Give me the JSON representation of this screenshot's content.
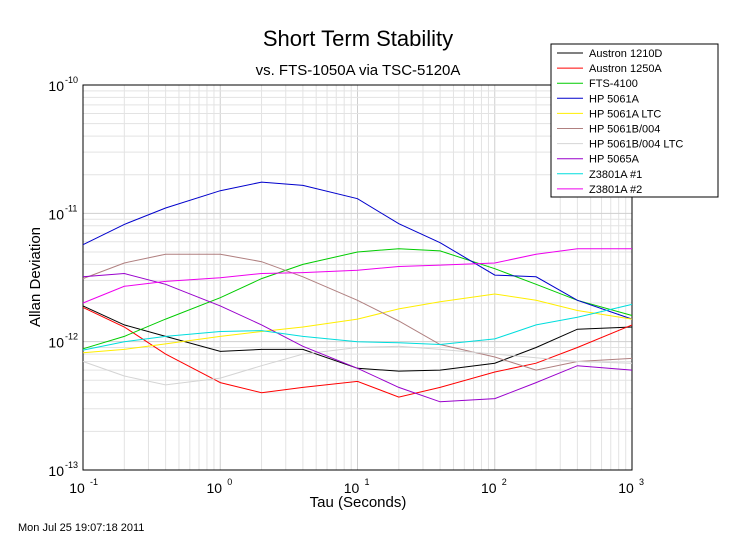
{
  "timestamp": "Mon Jul 25 19:07:18 2011",
  "chart_data": {
    "type": "line",
    "title": "Short Term Stability",
    "subtitle": "vs. FTS-1050A via TSC-5120A",
    "xlabel": "Tau (Seconds)",
    "ylabel": "Allan Deviation",
    "xscale": "log",
    "yscale": "log",
    "xlim": [
      0.1,
      1000
    ],
    "ylim": [
      1e-13,
      1e-10
    ],
    "grid": true,
    "legend_position": "top-right",
    "x_tick_labels": [
      {
        "value": 0.1,
        "base": "10",
        "exp": "-1"
      },
      {
        "value": 1,
        "base": "10",
        "exp": "0"
      },
      {
        "value": 10,
        "base": "10",
        "exp": "1"
      },
      {
        "value": 100,
        "base": "10",
        "exp": "2"
      },
      {
        "value": 1000,
        "base": "10",
        "exp": "3"
      }
    ],
    "y_tick_labels": [
      {
        "value": 1e-13,
        "base": "10",
        "exp": "-13"
      },
      {
        "value": 1e-12,
        "base": "10",
        "exp": "-12"
      },
      {
        "value": 1e-11,
        "base": "10",
        "exp": "-11"
      },
      {
        "value": 1e-10,
        "base": "10",
        "exp": "-10"
      }
    ],
    "x": [
      0.1,
      0.2,
      0.4,
      1,
      2,
      4,
      10,
      20,
      40,
      100,
      200,
      400,
      1000
    ],
    "series": [
      {
        "name": "Austron 1210D",
        "color": "#000000",
        "values": [
          1.9e-12,
          1.35e-12,
          1.1e-12,
          8.4e-13,
          8.7e-13,
          8.7e-13,
          6.2e-13,
          5.9e-13,
          6e-13,
          6.8e-13,
          9e-13,
          1.25e-12,
          1.3e-12
        ]
      },
      {
        "name": "Austron 1250A",
        "color": "#ff0000",
        "values": [
          1.85e-12,
          1.3e-12,
          8e-13,
          4.8e-13,
          4e-13,
          4.4e-13,
          4.9e-13,
          3.7e-13,
          4.4e-13,
          5.8e-13,
          6.8e-13,
          9e-13,
          1.35e-12
        ]
      },
      {
        "name": "FTS-4100",
        "color": "#00cc00",
        "values": [
          8.8e-13,
          1.1e-12,
          1.5e-12,
          2.2e-12,
          3.1e-12,
          4e-12,
          5e-12,
          5.3e-12,
          5.1e-12,
          3.7e-12,
          2.8e-12,
          2.1e-12,
          1.6e-12
        ]
      },
      {
        "name": "HP 5061A",
        "color": "#0000cc",
        "values": [
          5.7e-12,
          8.2e-12,
          1.1e-11,
          1.5e-11,
          1.75e-11,
          1.65e-11,
          1.3e-11,
          8.3e-12,
          5.9e-12,
          3.3e-12,
          3.2e-12,
          2.1e-12,
          1.5e-12
        ]
      },
      {
        "name": "HP 5061A LTC",
        "color": "#ffee00",
        "values": [
          8.2e-13,
          8.7e-13,
          9.6e-13,
          1.1e-12,
          1.2e-12,
          1.3e-12,
          1.5e-12,
          1.8e-12,
          2.05e-12,
          2.35e-12,
          2.1e-12,
          1.75e-12,
          1.5e-12
        ]
      },
      {
        "name": "HP 5061B/004",
        "color": "#b08080",
        "values": [
          3.1e-12,
          4.1e-12,
          4.8e-12,
          4.8e-12,
          4.2e-12,
          3.2e-12,
          2.1e-12,
          1.45e-12,
          9.5e-13,
          7.6e-13,
          6e-13,
          7e-13,
          7.4e-13
        ]
      },
      {
        "name": "HP 5061B/004 LTC",
        "color": "#d4d4d4",
        "values": [
          7e-13,
          5.4e-13,
          4.6e-13,
          5.2e-13,
          6.5e-13,
          8e-13,
          9e-13,
          9.2e-13,
          8.7e-13,
          8e-13,
          7.5e-13,
          7e-13,
          6.8e-13
        ]
      },
      {
        "name": "HP 5065A",
        "color": "#9900cc",
        "values": [
          3.2e-12,
          3.4e-12,
          2.8e-12,
          1.9e-12,
          1.35e-12,
          9.2e-13,
          6.2e-13,
          4.4e-13,
          3.4e-13,
          3.6e-13,
          4.8e-13,
          6.5e-13,
          6e-13
        ]
      },
      {
        "name": "Z3801A #1",
        "color": "#00dddd",
        "values": [
          8.6e-13,
          1e-12,
          1.1e-12,
          1.2e-12,
          1.22e-12,
          1.1e-12,
          1e-12,
          9.8e-13,
          9.5e-13,
          1.05e-12,
          1.35e-12,
          1.55e-12,
          1.95e-12
        ]
      },
      {
        "name": "Z3801A #2",
        "color": "#ee00ee",
        "values": [
          2e-12,
          2.7e-12,
          2.95e-12,
          3.15e-12,
          3.4e-12,
          3.45e-12,
          3.6e-12,
          3.85e-12,
          3.95e-12,
          4.1e-12,
          4.8e-12,
          5.3e-12,
          5.3e-12
        ]
      }
    ]
  }
}
